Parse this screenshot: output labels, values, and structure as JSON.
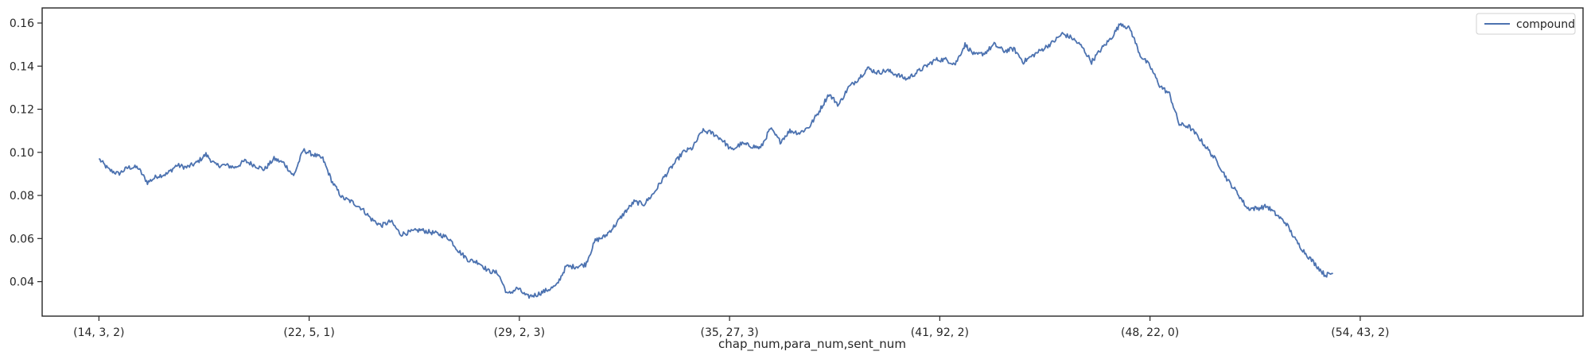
{
  "chart_data": {
    "type": "line",
    "title": "",
    "xlabel": "chap_num,para_num,sent_num",
    "ylabel": "",
    "x_ticks": [
      "(14, 3, 2)",
      "(22, 5, 1)",
      "(29, 2, 3)",
      "(35, 27, 3)",
      "(41, 92, 2)",
      "(48, 22, 0)",
      "(54, 43, 2)"
    ],
    "y_ticks": [
      0.04,
      0.06,
      0.08,
      0.1,
      0.12,
      0.14,
      0.16
    ],
    "y_tick_labels": [
      "0.04",
      "0.06",
      "0.08",
      "0.10",
      "0.12",
      "0.14",
      "0.16"
    ],
    "ylim": [
      0.024,
      0.167
    ],
    "xlim": [
      -0.27,
      7.06
    ],
    "grid": false,
    "legend": {
      "placement": "top-right"
    },
    "series": [
      {
        "name": "compound",
        "color": "#4c72b0",
        "points": [
          [
            0.0,
            0.097
          ],
          [
            0.046,
            0.092
          ],
          [
            0.093,
            0.09
          ],
          [
            0.139,
            0.093
          ],
          [
            0.185,
            0.093
          ],
          [
            0.231,
            0.086
          ],
          [
            0.278,
            0.089
          ],
          [
            0.324,
            0.09
          ],
          [
            0.37,
            0.094
          ],
          [
            0.417,
            0.093
          ],
          [
            0.463,
            0.095
          ],
          [
            0.509,
            0.099
          ],
          [
            0.556,
            0.094
          ],
          [
            0.602,
            0.094
          ],
          [
            0.648,
            0.093
          ],
          [
            0.694,
            0.096
          ],
          [
            0.741,
            0.094
          ],
          [
            0.787,
            0.092
          ],
          [
            0.833,
            0.097
          ],
          [
            0.88,
            0.095
          ],
          [
            0.926,
            0.089
          ],
          [
            0.972,
            0.101
          ],
          [
            1.019,
            0.099
          ],
          [
            1.065,
            0.097
          ],
          [
            1.111,
            0.086
          ],
          [
            1.157,
            0.079
          ],
          [
            1.204,
            0.077
          ],
          [
            1.25,
            0.074
          ],
          [
            1.296,
            0.069
          ],
          [
            1.343,
            0.066
          ],
          [
            1.389,
            0.068
          ],
          [
            1.435,
            0.062
          ],
          [
            1.481,
            0.063
          ],
          [
            1.528,
            0.064
          ],
          [
            1.574,
            0.063
          ],
          [
            1.62,
            0.062
          ],
          [
            1.667,
            0.06
          ],
          [
            1.713,
            0.054
          ],
          [
            1.759,
            0.05
          ],
          [
            1.806,
            0.049
          ],
          [
            1.852,
            0.045
          ],
          [
            1.898,
            0.044
          ],
          [
            1.944,
            0.034
          ],
          [
            1.991,
            0.037
          ],
          [
            2.037,
            0.033
          ],
          [
            2.083,
            0.034
          ],
          [
            2.13,
            0.036
          ],
          [
            2.176,
            0.038
          ],
          [
            2.222,
            0.047
          ],
          [
            2.269,
            0.047
          ],
          [
            2.315,
            0.048
          ],
          [
            2.361,
            0.059
          ],
          [
            2.407,
            0.061
          ],
          [
            2.454,
            0.066
          ],
          [
            2.5,
            0.072
          ],
          [
            2.546,
            0.077
          ],
          [
            2.593,
            0.076
          ],
          [
            2.639,
            0.081
          ],
          [
            2.685,
            0.088
          ],
          [
            2.731,
            0.094
          ],
          [
            2.778,
            0.1
          ],
          [
            2.824,
            0.102
          ],
          [
            2.87,
            0.11
          ],
          [
            2.917,
            0.109
          ],
          [
            2.963,
            0.106
          ],
          [
            3.009,
            0.101
          ],
          [
            3.056,
            0.104
          ],
          [
            3.102,
            0.103
          ],
          [
            3.148,
            0.102
          ],
          [
            3.194,
            0.111
          ],
          [
            3.241,
            0.105
          ],
          [
            3.287,
            0.11
          ],
          [
            3.333,
            0.109
          ],
          [
            3.38,
            0.112
          ],
          [
            3.426,
            0.119
          ],
          [
            3.472,
            0.127
          ],
          [
            3.519,
            0.122
          ],
          [
            3.565,
            0.13
          ],
          [
            3.611,
            0.134
          ],
          [
            3.657,
            0.139
          ],
          [
            3.704,
            0.137
          ],
          [
            3.75,
            0.138
          ],
          [
            3.796,
            0.136
          ],
          [
            3.843,
            0.134
          ],
          [
            3.889,
            0.137
          ],
          [
            3.935,
            0.14
          ],
          [
            3.981,
            0.143
          ],
          [
            4.028,
            0.143
          ],
          [
            4.074,
            0.141
          ],
          [
            4.12,
            0.15
          ],
          [
            4.167,
            0.145
          ],
          [
            4.213,
            0.146
          ],
          [
            4.259,
            0.15
          ],
          [
            4.306,
            0.147
          ],
          [
            4.352,
            0.148
          ],
          [
            4.398,
            0.142
          ],
          [
            4.444,
            0.145
          ],
          [
            4.491,
            0.148
          ],
          [
            4.537,
            0.151
          ],
          [
            4.583,
            0.155
          ],
          [
            4.63,
            0.153
          ],
          [
            4.676,
            0.149
          ],
          [
            4.722,
            0.142
          ],
          [
            4.769,
            0.148
          ],
          [
            4.815,
            0.153
          ],
          [
            4.861,
            0.16
          ],
          [
            4.907,
            0.157
          ],
          [
            4.954,
            0.145
          ],
          [
            5.0,
            0.14
          ],
          [
            5.046,
            0.131
          ],
          [
            5.093,
            0.127
          ],
          [
            5.139,
            0.113
          ],
          [
            5.185,
            0.112
          ],
          [
            5.231,
            0.107
          ],
          [
            5.278,
            0.101
          ],
          [
            5.324,
            0.095
          ],
          [
            5.37,
            0.087
          ],
          [
            5.417,
            0.081
          ],
          [
            5.463,
            0.074
          ],
          [
            5.509,
            0.074
          ],
          [
            5.556,
            0.075
          ],
          [
            5.602,
            0.071
          ],
          [
            5.648,
            0.067
          ],
          [
            5.694,
            0.059
          ],
          [
            5.741,
            0.053
          ],
          [
            5.787,
            0.048
          ],
          [
            5.833,
            0.043
          ],
          [
            5.87,
            0.044
          ]
        ]
      }
    ]
  }
}
